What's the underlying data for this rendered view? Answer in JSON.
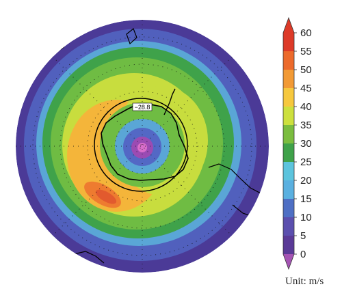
{
  "map": {
    "projection": "south polar stereographic",
    "contour_label": "−28.8",
    "ring_colors": [
      "#4b3a97",
      "#5368c5",
      "#5aa6d6",
      "#55b14c",
      "#7cc242",
      "#c8dd3e",
      "#f4b53a",
      "#ee7b30",
      "#e25a2e",
      "#5368c5",
      "#5aa6d6",
      "#9b4bb3",
      "#bd58b9",
      "#d96ecb"
    ]
  },
  "colorbar": {
    "ticks": [
      "0",
      "5",
      "10",
      "15",
      "20",
      "25",
      "30",
      "35",
      "40",
      "45",
      "50",
      "55",
      "60"
    ],
    "colors": [
      "#a453b3",
      "#5a3a97",
      "#5b4fae",
      "#4e6fc4",
      "#5ab0e0",
      "#5cc4dd",
      "#3fa24a",
      "#7bbd3f",
      "#cde03e",
      "#f6c83e",
      "#f29a35",
      "#ec6a2b",
      "#dd3a28"
    ],
    "unit": "Unit: m/s"
  }
}
